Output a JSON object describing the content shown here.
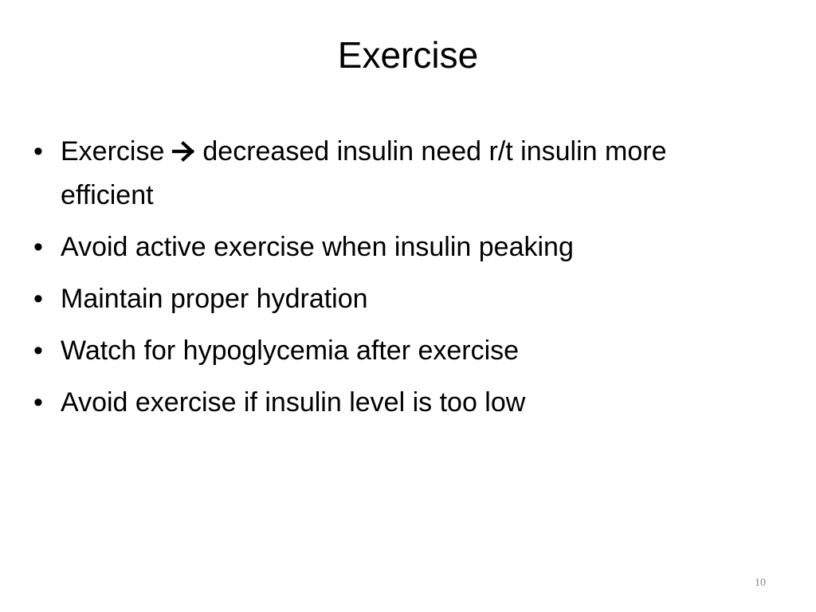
{
  "slide": {
    "title": "Exercise",
    "bullets": [
      {
        "before": "Exercise",
        "icon": "right-arrow-icon",
        "after": "decreased insulin need r/t insulin more efficient"
      },
      {
        "text": "Avoid active exercise when insulin peaking"
      },
      {
        "text": "Maintain proper hydration"
      },
      {
        "text": "Watch for hypoglycemia after exercise"
      },
      {
        "text": "Avoid exercise if insulin level is too low"
      }
    ],
    "bullet_symbol": "•",
    "page_number": "10"
  }
}
